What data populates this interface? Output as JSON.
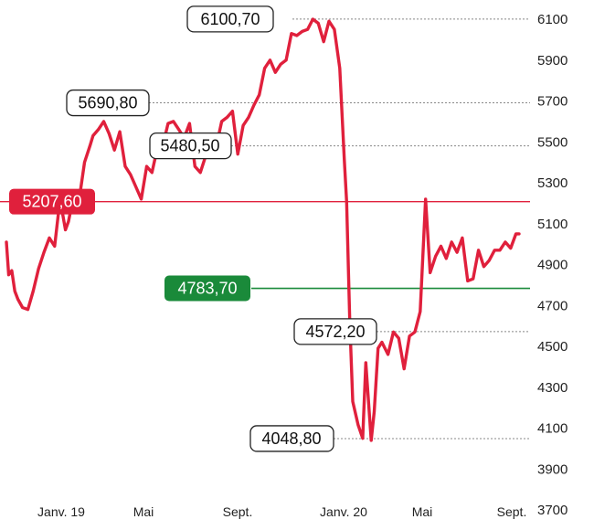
{
  "chart_data": {
    "type": "line",
    "title": "",
    "xlabel": "",
    "ylabel": "",
    "ylim": [
      3700,
      6150
    ],
    "y_ticks": [
      6100,
      5900,
      5700,
      5500,
      5300,
      5100,
      4900,
      4700,
      4500,
      4300,
      4100,
      3900,
      3700
    ],
    "y_tick_labels": [
      "6100",
      "5900",
      "5700",
      "5500",
      "5300",
      "5100",
      "4900",
      "4700",
      "4500",
      "4300",
      "4100",
      "3900",
      "3700"
    ],
    "x_ticks": [
      {
        "label": "Janv. 19",
        "x": "2019-01"
      },
      {
        "label": "Mai",
        "x": "2019-05"
      },
      {
        "label": "Sept.",
        "x": "2019-09"
      },
      {
        "label": "Janv. 20",
        "x": "2020-01"
      },
      {
        "label": "Mai",
        "x": "2020-05"
      },
      {
        "label": "Sept.",
        "x": "2020-09"
      }
    ],
    "grid": false,
    "series": [
      {
        "color": "#e0203c",
        "x": [
          "2018-12-03",
          "2018-12-06",
          "2018-12-10",
          "2018-12-14",
          "2018-12-18",
          "2018-12-24",
          "2018-12-31",
          "2019-01-07",
          "2019-01-14",
          "2019-01-21",
          "2019-01-28",
          "2019-02-04",
          "2019-02-11",
          "2019-02-18",
          "2019-02-22",
          "2019-03-01",
          "2019-03-08",
          "2019-03-15",
          "2019-03-22",
          "2019-03-26",
          "2019-04-02",
          "2019-04-09",
          "2019-04-16",
          "2019-04-23",
          "2019-04-30",
          "2019-05-07",
          "2019-05-14",
          "2019-05-21",
          "2019-05-28",
          "2019-06-04",
          "2019-06-11",
          "2019-06-18",
          "2019-06-25",
          "2019-07-02",
          "2019-07-09",
          "2019-07-16",
          "2019-07-23",
          "2019-07-30",
          "2019-08-06",
          "2019-08-13",
          "2019-08-20",
          "2019-08-27",
          "2019-09-03",
          "2019-09-10",
          "2019-09-17",
          "2019-09-24",
          "2019-10-01",
          "2019-10-08",
          "2019-10-15",
          "2019-10-22",
          "2019-10-29",
          "2019-11-05",
          "2019-11-12",
          "2019-11-19",
          "2019-11-26",
          "2019-12-03",
          "2019-12-10",
          "2019-12-17",
          "2019-12-24",
          "2019-12-31",
          "2020-01-07",
          "2020-01-14",
          "2020-01-21",
          "2020-01-28",
          "2020-02-04",
          "2020-02-11",
          "2020-02-17",
          "2020-02-20",
          "2020-02-24",
          "2020-02-28",
          "2020-03-06",
          "2020-03-12",
          "2020-03-16",
          "2020-03-23",
          "2020-03-27",
          "2020-04-01",
          "2020-04-06",
          "2020-04-14",
          "2020-04-21",
          "2020-04-28",
          "2020-05-05",
          "2020-05-12",
          "2020-05-19",
          "2020-05-26",
          "2020-06-02",
          "2020-06-08",
          "2020-06-15",
          "2020-06-22",
          "2020-06-29",
          "2020-07-06",
          "2020-07-13",
          "2020-07-20",
          "2020-07-27",
          "2020-08-03",
          "2020-08-10",
          "2020-08-17",
          "2020-08-24",
          "2020-08-31",
          "2020-09-07",
          "2020-09-14",
          "2020-09-21",
          "2020-09-28",
          "2020-10-02"
        ],
        "y": [
          5010,
          4850,
          4870,
          4770,
          4730,
          4690,
          4680,
          4770,
          4880,
          4960,
          5030,
          4990,
          5220,
          5070,
          5110,
          5240,
          5220,
          5400,
          5480,
          5530,
          5560,
          5600,
          5540,
          5460,
          5550,
          5380,
          5340,
          5280,
          5220,
          5380,
          5350,
          5470,
          5480,
          5590,
          5600,
          5560,
          5520,
          5590,
          5380,
          5350,
          5430,
          5430,
          5480,
          5600,
          5620,
          5650,
          5440,
          5580,
          5620,
          5680,
          5730,
          5860,
          5900,
          5840,
          5880,
          5900,
          6030,
          6020,
          6040,
          6050,
          6100,
          6080,
          5990,
          6090,
          6050,
          5860,
          5410,
          5207,
          4630,
          4230,
          4115,
          4050,
          4420,
          4040,
          4180,
          4490,
          4520,
          4460,
          4570,
          4540,
          4390,
          4550,
          4570,
          4670,
          5220,
          4860,
          4940,
          4990,
          4930,
          5010,
          4960,
          5030,
          4820,
          4830,
          4970,
          4890,
          4920,
          4970,
          4970,
          5010,
          4980,
          5050,
          5050
        ]
      }
    ],
    "reference_lines": [
      {
        "value": 5207.6,
        "label": "5207,60",
        "color": "#e0203c"
      },
      {
        "value": 4783.7,
        "label": "4783,70",
        "color": "#1a8a3a"
      }
    ],
    "annotations": [
      {
        "label": "6100,70",
        "value": 6100.7
      },
      {
        "label": "5690,80",
        "value": 5690.8
      },
      {
        "label": "5480,50",
        "value": 5480.5
      },
      {
        "label": "4572,20",
        "value": 4572.2
      },
      {
        "label": "4048,80",
        "value": 4048.8
      }
    ]
  }
}
